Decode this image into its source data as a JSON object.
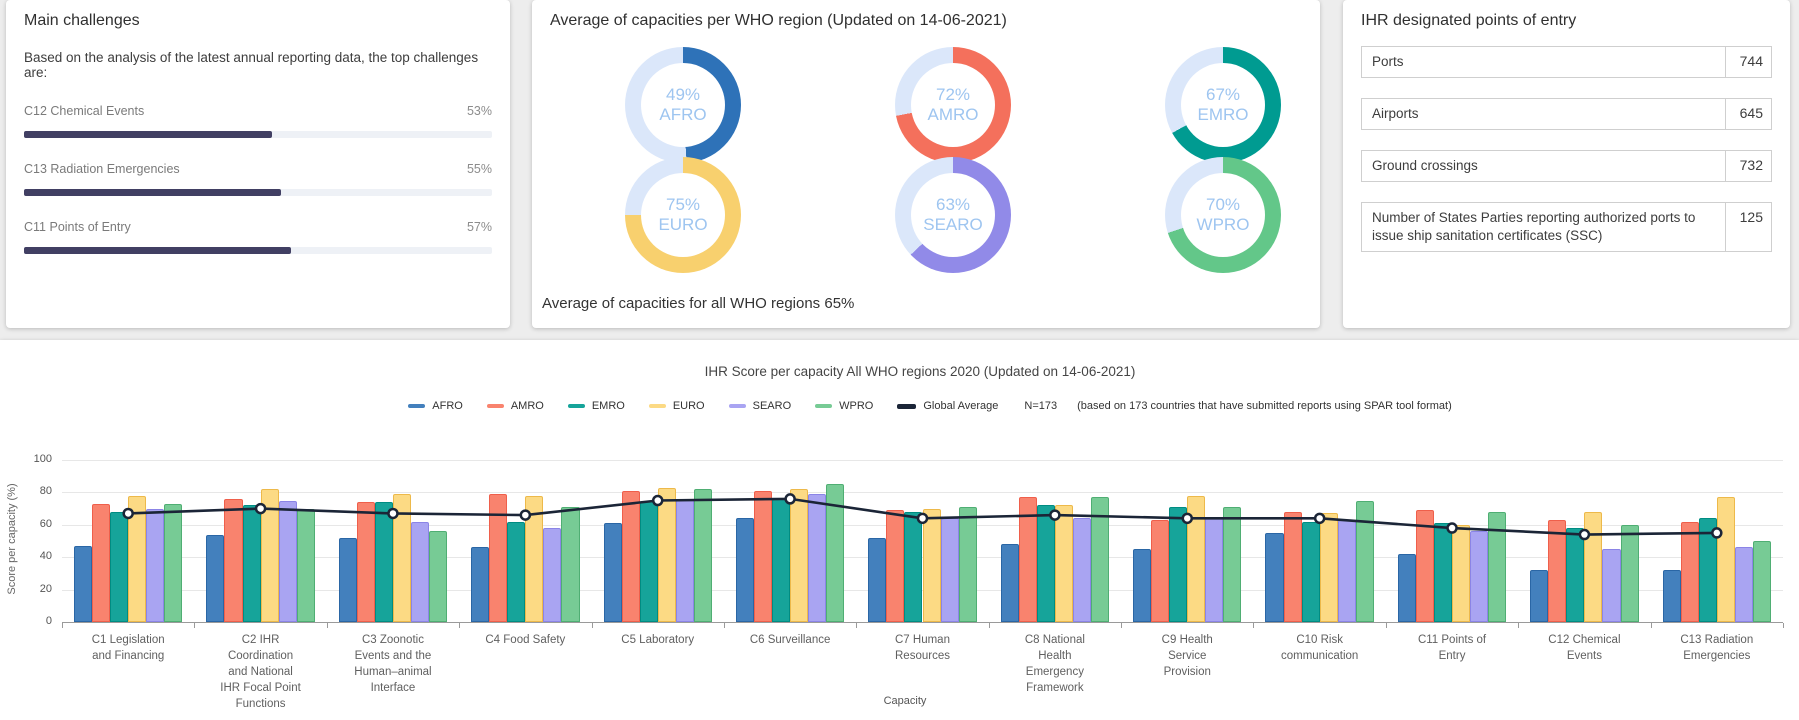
{
  "main_challenges": {
    "title": "Main challenges",
    "subtitle": "Based on the analysis of the latest annual reporting data, the top challenges are:",
    "bar_color": "#413f63",
    "items": [
      {
        "label": "C12 Chemical Events",
        "value": 53,
        "value_label": "53%"
      },
      {
        "label": "C13 Radiation Emergencies",
        "value": 55,
        "value_label": "55%"
      },
      {
        "label": "C11 Points of Entry",
        "value": 57,
        "value_label": "57%"
      }
    ]
  },
  "region_capacities": {
    "title": "Average of capacities per WHO region (Updated on 14-06-2021)",
    "footer": "Average of capacities for all WHO regions 65%",
    "track_color": "#dbe7fa",
    "label_color": "#9ec5f0",
    "donuts": [
      {
        "region": "AFRO",
        "value": 49,
        "value_label": "49%",
        "color": "#2e72b8"
      },
      {
        "region": "AMRO",
        "value": 72,
        "value_label": "72%",
        "color": "#f4705c"
      },
      {
        "region": "EMRO",
        "value": 67,
        "value_label": "67%",
        "color": "#009b91"
      },
      {
        "region": "EURO",
        "value": 75,
        "value_label": "75%",
        "color": "#f8d06e"
      },
      {
        "region": "SEARO",
        "value": 63,
        "value_label": "63%",
        "color": "#918ae8"
      },
      {
        "region": "WPRO",
        "value": 70,
        "value_label": "70%",
        "color": "#63c789"
      }
    ]
  },
  "points_of_entry": {
    "title": "IHR designated points of entry",
    "rows": [
      {
        "label": "Ports",
        "value": "744"
      },
      {
        "label": "Airports",
        "value": "645"
      },
      {
        "label": "Ground crossings",
        "value": "732"
      },
      {
        "label": "Number of States Parties reporting authorized ports to issue ship sanitation certificates (SSC)",
        "value": "125"
      }
    ]
  },
  "chart_data": {
    "type": "bar",
    "title": "IHR Score per capacity All WHO regions 2020  (Updated on 14-06-2021)",
    "xlabel": "Capacity",
    "ylabel": "Score per capacity (%)",
    "ylim": [
      0,
      100
    ],
    "yticks": [
      0,
      20,
      40,
      60,
      80,
      100
    ],
    "grid": true,
    "legend_position": "top-center",
    "legend_note_n": "N=173",
    "legend_note": "(based on 173 countries that have submitted reports using SPAR tool format)",
    "categories": [
      "C1 Legislation and Financing",
      "C2 IHR Coordination and National IHR Focal Point Functions",
      "C3 Zoonotic Events and the Human–animal Interface",
      "C4 Food Safety",
      "C5 Laboratory",
      "C6 Surveillance",
      "C7 Human Resources",
      "C8 National Health Emergency Framework",
      "C9 Health Service Provision",
      "C10 Risk communication",
      "C11 Points of Entry",
      "C12 Chemical Events",
      "C13 Radiation Emergencies"
    ],
    "category_label_lines": [
      [
        "C1 Legislation",
        "and Financing"
      ],
      [
        "C2 IHR",
        "Coordination",
        "and National",
        "IHR Focal Point",
        "Functions"
      ],
      [
        "C3 Zoonotic",
        "Events and the",
        "Human–animal",
        "Interface"
      ],
      [
        "C4 Food Safety"
      ],
      [
        "C5 Laboratory"
      ],
      [
        "C6 Surveillance"
      ],
      [
        "C7 Human",
        "Resources"
      ],
      [
        "C8 National",
        "Health",
        "Emergency",
        "Framework"
      ],
      [
        "C9 Health",
        "Service",
        "Provision"
      ],
      [
        "C10 Risk",
        "communication"
      ],
      [
        "C11 Points of",
        "Entry"
      ],
      [
        "C12 Chemical",
        "Events"
      ],
      [
        "C13 Radiation",
        "Emergencies"
      ]
    ],
    "series": [
      {
        "name": "AFRO",
        "color": "#4380bd",
        "border": "#2a66a5",
        "values": [
          47,
          54,
          52,
          46,
          61,
          64,
          52,
          48,
          45,
          55,
          42,
          32,
          32
        ]
      },
      {
        "name": "AMRO",
        "color": "#f9836e",
        "border": "#ef5f4b",
        "values": [
          73,
          76,
          74,
          79,
          81,
          81,
          69,
          77,
          63,
          68,
          69,
          63,
          62
        ]
      },
      {
        "name": "EMRO",
        "color": "#16a49a",
        "border": "#008c82",
        "values": [
          68,
          72,
          74,
          62,
          75,
          76,
          68,
          72,
          71,
          62,
          61,
          58,
          64
        ]
      },
      {
        "name": "EURO",
        "color": "#fcda84",
        "border": "#edb94a",
        "values": [
          78,
          82,
          79,
          78,
          83,
          82,
          70,
          72,
          78,
          67,
          60,
          68,
          77
        ]
      },
      {
        "name": "SEARO",
        "color": "#a9a4f2",
        "border": "#8b84e6",
        "values": [
          70,
          75,
          62,
          58,
          76,
          79,
          64,
          64,
          64,
          63,
          56,
          45,
          46
        ]
      },
      {
        "name": "WPRO",
        "color": "#77cb95",
        "border": "#4fae73",
        "values": [
          73,
          70,
          56,
          71,
          82,
          85,
          71,
          77,
          71,
          75,
          68,
          60,
          50
        ]
      }
    ],
    "line_series": {
      "name": "Global Average",
      "color": "#1b2537",
      "values": [
        67,
        70,
        67,
        66,
        75,
        76,
        64,
        66,
        64,
        64,
        58,
        54,
        55
      ]
    }
  }
}
